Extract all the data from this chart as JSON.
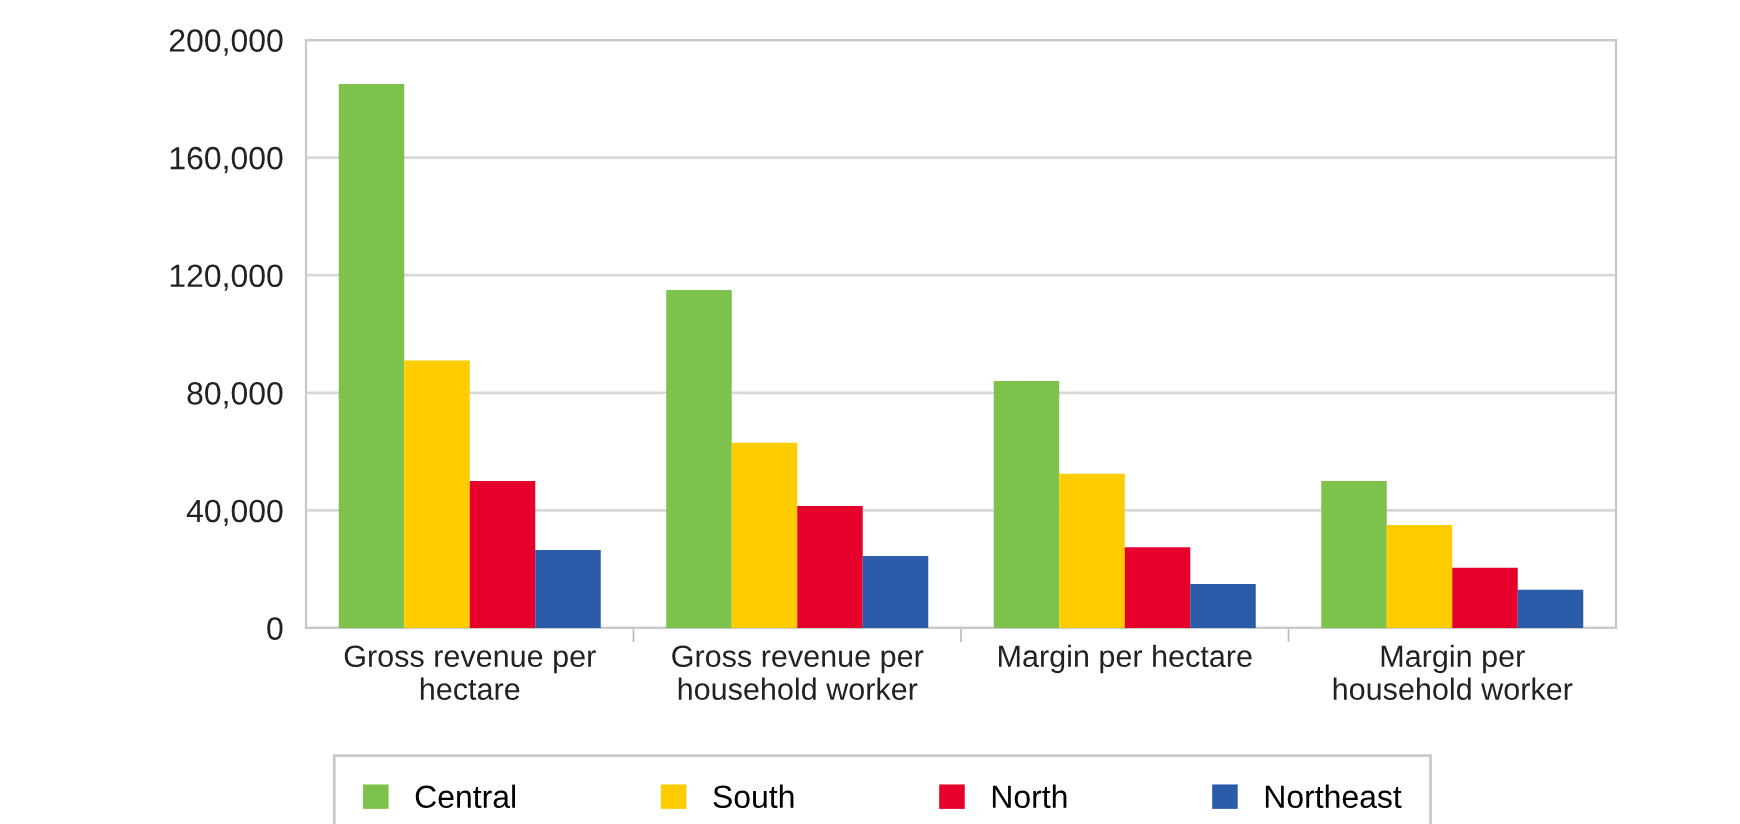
{
  "chart_data": {
    "type": "bar",
    "categories": [
      "Gross revenue per\nhectare",
      "Gross revenue per\nhousehold worker",
      "Margin per hectare",
      "Margin per\nhousehold worker"
    ],
    "series": [
      {
        "name": "Central",
        "color": "#7dc24b",
        "values": [
          185000,
          115000,
          84000,
          50000
        ]
      },
      {
        "name": "South",
        "color": "#ffcc00",
        "values": [
          91000,
          63000,
          52500,
          35000
        ]
      },
      {
        "name": "North",
        "color": "#e8002c",
        "values": [
          50000,
          41500,
          27500,
          20500
        ]
      },
      {
        "name": "Northeast",
        "color": "#2a5caa",
        "values": [
          26500,
          24500,
          15000,
          13000
        ]
      }
    ],
    "ylim": [
      0,
      200000
    ],
    "yticks": [
      {
        "value": 0,
        "label": "0"
      },
      {
        "value": 40000,
        "label": "40,000"
      },
      {
        "value": 80000,
        "label": "80,000"
      },
      {
        "value": 120000,
        "label": "120,000"
      },
      {
        "value": 160000,
        "label": "160,000"
      },
      {
        "value": 200000,
        "label": "200,000"
      }
    ],
    "grid": "y",
    "legend": "bottom"
  }
}
